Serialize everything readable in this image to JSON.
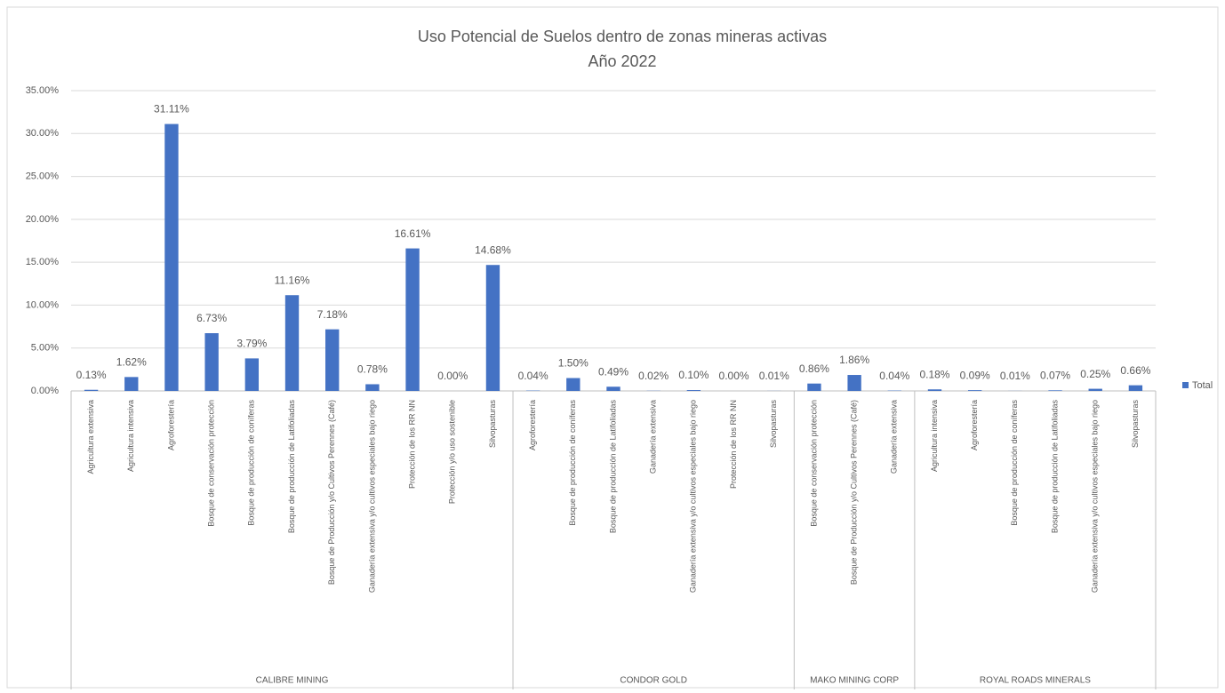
{
  "chart_data": {
    "type": "bar",
    "title": "Uso Potencial de Suelos dentro de zonas mineras activas",
    "subtitle": "Año 2022",
    "series_name": "Total",
    "color": "#4472c4",
    "ylim": [
      0,
      35
    ],
    "yticks": [
      {
        "value": 0,
        "label": "0.00%"
      },
      {
        "value": 5,
        "label": "5.00%"
      },
      {
        "value": 10,
        "label": "10.00%"
      },
      {
        "value": 15,
        "label": "15.00%"
      },
      {
        "value": 20,
        "label": "20.00%"
      },
      {
        "value": 25,
        "label": "25.00%"
      },
      {
        "value": 30,
        "label": "30.00%"
      },
      {
        "value": 35,
        "label": "35.00%"
      }
    ],
    "grid": true,
    "legend": "right",
    "groups": [
      {
        "name": "CALIBRE MINING",
        "categories": [
          "Agricultura extensiva",
          "Agricultura intensiva",
          "Agroforestería",
          "Bosque de conservación protección",
          "Bosque de producción de coníferas",
          "Bosque de producción de Latifoliadas",
          "Bosque de Producción y/o Cultivos Perennes (Café)",
          "Ganadería extensiva y/o cultivos especiales bajo riego",
          "Protección de los RR NN",
          "Protección y/o uso sostenible",
          "Silvopasturas"
        ],
        "values": [
          0.13,
          1.62,
          31.11,
          6.73,
          3.79,
          11.16,
          7.18,
          0.78,
          16.61,
          0.0,
          14.68
        ],
        "value_labels": [
          "0.13%",
          "1.62%",
          "31.11%",
          "6.73%",
          "3.79%",
          "11.16%",
          "7.18%",
          "0.78%",
          "16.61%",
          "0.00%",
          "14.68%"
        ]
      },
      {
        "name": "CONDOR GOLD",
        "categories": [
          "Agroforestería",
          "Bosque de producción de coníferas",
          "Bosque de producción de Latifoliadas",
          "Ganadería extensiva",
          "Ganadería extensiva y/o cultivos especiales bajo riego",
          "Protección de los RR NN",
          "Silvopasturas"
        ],
        "values": [
          0.04,
          1.5,
          0.49,
          0.02,
          0.1,
          0.0,
          0.01
        ],
        "value_labels": [
          "0.04%",
          "1.50%",
          "0.49%",
          "0.02%",
          "0.10%",
          "0.00%",
          "0.01%"
        ]
      },
      {
        "name": "MAKO MINING CORP",
        "categories": [
          "Bosque de conservación protección",
          "Bosque de Producción y/o Cultivos Perennes (Café)",
          "Ganadería extensiva"
        ],
        "values": [
          0.86,
          1.86,
          0.04
        ],
        "value_labels": [
          "0.86%",
          "1.86%",
          "0.04%"
        ]
      },
      {
        "name": "ROYAL ROADS MINERALS",
        "categories": [
          "Agricultura intensiva",
          "Agroforestería",
          "Bosque de producción de coníferas",
          "Bosque de producción de Latifoliadas",
          "Ganadería extensiva y/o cultivos especiales bajo riego",
          "Silvopasturas"
        ],
        "values": [
          0.18,
          0.09,
          0.01,
          0.07,
          0.25,
          0.66
        ],
        "value_labels": [
          "0.18%",
          "0.09%",
          "0.01%",
          "0.07%",
          "0.25%",
          "0.66%"
        ]
      }
    ]
  }
}
